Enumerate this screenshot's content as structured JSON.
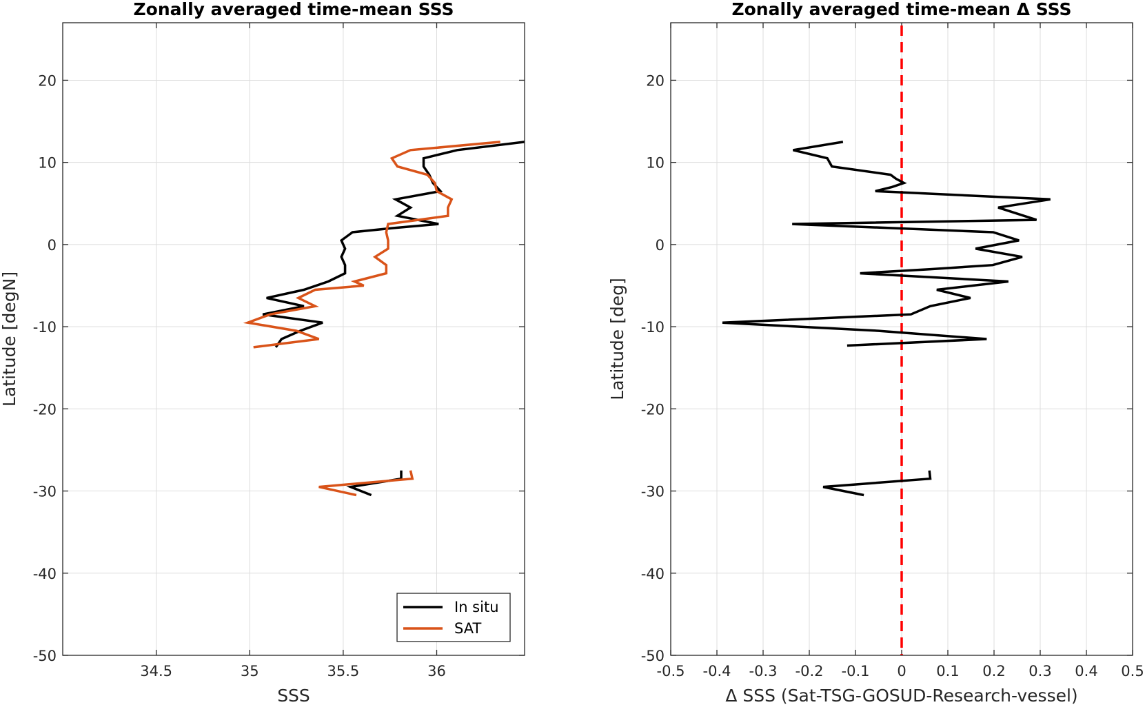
{
  "chart_data": [
    {
      "type": "line",
      "title": "Zonally averaged time-mean SSS",
      "xlabel": "SSS",
      "ylabel": "Latitude [degN]",
      "xlim": [
        34.0,
        36.47
      ],
      "ylim": [
        -50,
        27
      ],
      "xticks": [
        34.5,
        35,
        35.5,
        36
      ],
      "xtick_labels": [
        "34.5",
        "35",
        "35.5",
        "36"
      ],
      "yticks": [
        -50,
        -40,
        -30,
        -20,
        -10,
        0,
        10,
        20
      ],
      "ytick_labels": [
        "-50",
        "-40",
        "-30",
        "-20",
        "-10",
        "0",
        "10",
        "20"
      ],
      "grid": true,
      "legend": {
        "location": "bottom-right",
        "entries": [
          "In situ",
          "SAT"
        ]
      },
      "series": [
        {
          "name": "In situ",
          "color": "#000000",
          "segments": [
            [
              [
                36.47,
                12.5
              ],
              [
                36.11,
                11.5
              ],
              [
                35.93,
                10.5
              ],
              [
                35.93,
                9.5
              ],
              [
                35.96,
                8.5
              ],
              [
                35.98,
                7.5
              ],
              [
                36.02,
                6.5
              ],
              [
                35.78,
                5.5
              ],
              [
                35.86,
                4.5
              ],
              [
                35.79,
                3.5
              ],
              [
                36.01,
                2.5
              ],
              [
                35.76,
                2.0
              ],
              [
                35.55,
                1.5
              ],
              [
                35.49,
                0.5
              ],
              [
                35.51,
                -0.5
              ],
              [
                35.49,
                -1.5
              ],
              [
                35.51,
                -2.5
              ],
              [
                35.51,
                -3.5
              ],
              [
                35.42,
                -4.5
              ],
              [
                35.29,
                -5.5
              ],
              [
                35.09,
                -6.5
              ],
              [
                35.29,
                -7.5
              ],
              [
                35.07,
                -8.5
              ],
              [
                35.39,
                -9.5
              ],
              [
                35.27,
                -10.5
              ],
              [
                35.17,
                -11.5
              ],
              [
                35.14,
                -12.5
              ]
            ],
            [
              [
                35.81,
                -27.5
              ],
              [
                35.81,
                -28.5
              ],
              [
                35.54,
                -29.5
              ],
              [
                35.65,
                -30.5
              ]
            ]
          ]
        },
        {
          "name": "SAT",
          "color": "#d95319",
          "segments": [
            [
              [
                36.34,
                12.5
              ],
              [
                35.86,
                11.5
              ],
              [
                35.76,
                10.5
              ],
              [
                35.79,
                9.5
              ],
              [
                35.95,
                8.5
              ],
              [
                35.99,
                7.5
              ],
              [
                36.0,
                6.5
              ],
              [
                36.08,
                5.5
              ],
              [
                36.06,
                4.5
              ],
              [
                36.06,
                3.5
              ],
              [
                35.74,
                2.5
              ],
              [
                35.73,
                1.5
              ],
              [
                35.74,
                0.5
              ],
              [
                35.74,
                -0.5
              ],
              [
                35.67,
                -1.5
              ],
              [
                35.73,
                -2.5
              ],
              [
                35.73,
                -3.5
              ],
              [
                35.56,
                -4.5
              ],
              [
                35.61,
                -5.0
              ],
              [
                35.35,
                -5.5
              ],
              [
                35.26,
                -6.5
              ],
              [
                35.35,
                -7.5
              ],
              [
                35.11,
                -8.5
              ],
              [
                34.99,
                -9.5
              ],
              [
                35.25,
                -10.5
              ],
              [
                35.37,
                -11.5
              ],
              [
                35.02,
                -12.5
              ]
            ],
            [
              [
                35.86,
                -27.5
              ],
              [
                35.87,
                -28.5
              ],
              [
                35.37,
                -29.5
              ],
              [
                35.57,
                -30.5
              ]
            ]
          ]
        }
      ]
    },
    {
      "type": "line",
      "title": "Zonally averaged time-mean Δ SSS",
      "xlabel": "Δ SSS (Sat-TSG-GOSUD-Research-vessel)",
      "ylabel": "Latitude [deg]",
      "xlim": [
        -0.5,
        0.5
      ],
      "ylim": [
        -50,
        27
      ],
      "xticks": [
        -0.5,
        -0.4,
        -0.3,
        -0.2,
        -0.1,
        0,
        0.1,
        0.2,
        0.3,
        0.4,
        0.5
      ],
      "xtick_labels": [
        "-0.5",
        "-0.4",
        "-0.3",
        "-0.2",
        "-0.1",
        "0",
        "0.1",
        "0.2",
        "0.3",
        "0.4",
        "0.5"
      ],
      "yticks": [
        -50,
        -40,
        -30,
        -20,
        -10,
        0,
        10,
        20
      ],
      "ytick_labels": [
        "-50",
        "-40",
        "-30",
        "-20",
        "-10",
        "0",
        "10",
        "20"
      ],
      "grid": true,
      "reference_line": {
        "x": 0,
        "style": "dashed",
        "color": "#ff0000"
      },
      "series": [
        {
          "color": "#000000",
          "segments": [
            [
              [
                -0.127,
                12.5
              ],
              [
                -0.235,
                11.5
              ],
              [
                -0.161,
                10.5
              ],
              [
                -0.151,
                9.5
              ],
              [
                -0.024,
                8.5
              ],
              [
                -0.012,
                8.0
              ],
              [
                0.005,
                7.5
              ],
              [
                -0.021,
                7.0
              ],
              [
                -0.057,
                6.5
              ],
              [
                0.322,
                5.5
              ],
              [
                0.209,
                4.5
              ],
              [
                0.292,
                3.0
              ],
              [
                -0.237,
                2.5
              ],
              [
                0.198,
                1.5
              ],
              [
                0.254,
                0.5
              ],
              [
                0.16,
                -0.5
              ],
              [
                0.261,
                -1.5
              ],
              [
                0.197,
                -2.5
              ],
              [
                0.06,
                -3.0
              ],
              [
                -0.09,
                -3.5
              ],
              [
                0.231,
                -4.5
              ],
              [
                0.076,
                -5.5
              ],
              [
                0.149,
                -6.5
              ],
              [
                0.062,
                -7.5
              ],
              [
                0.02,
                -8.5
              ],
              [
                -0.388,
                -9.5
              ],
              [
                -0.05,
                -10.5
              ],
              [
                0.184,
                -11.5
              ],
              [
                -0.118,
                -12.3
              ]
            ],
            [
              [
                0.06,
                -27.5
              ],
              [
                0.062,
                -28.5
              ],
              [
                -0.17,
                -29.5
              ],
              [
                -0.082,
                -30.5
              ]
            ]
          ]
        }
      ]
    }
  ]
}
